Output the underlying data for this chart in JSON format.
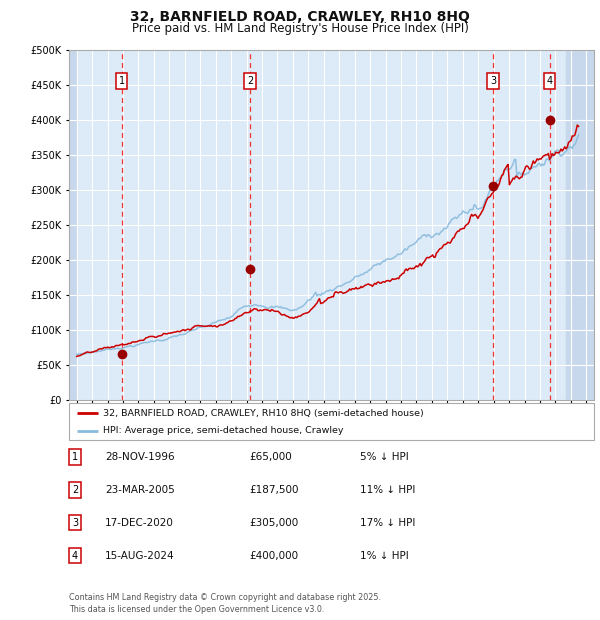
{
  "title": "32, BARNFIELD ROAD, CRAWLEY, RH10 8HQ",
  "subtitle": "Price paid vs. HM Land Registry's House Price Index (HPI)",
  "title_fontsize": 10,
  "subtitle_fontsize": 8.5,
  "xlim": [
    1993.5,
    2027.5
  ],
  "ylim": [
    0,
    500000
  ],
  "yticks": [
    0,
    50000,
    100000,
    150000,
    200000,
    250000,
    300000,
    350000,
    400000,
    450000,
    500000
  ],
  "ytick_labels": [
    "£0",
    "£50K",
    "£100K",
    "£150K",
    "£200K",
    "£250K",
    "£300K",
    "£350K",
    "£400K",
    "£450K",
    "£500K"
  ],
  "background_color": "#ddeaf7",
  "hatch_color": "#c8d8ec",
  "grid_color": "#ffffff",
  "red_line_color": "#cc0000",
  "blue_line_color": "#88bbdd",
  "vline_color": "#ee3333",
  "marker_color": "#990000",
  "sale_dates": [
    1996.91,
    2005.22,
    2020.96,
    2024.62
  ],
  "sale_prices": [
    65000,
    187500,
    305000,
    400000
  ],
  "sale_labels": [
    "1",
    "2",
    "3",
    "4"
  ],
  "legend_red_label": "32, BARNFIELD ROAD, CRAWLEY, RH10 8HQ (semi-detached house)",
  "legend_blue_label": "HPI: Average price, semi-detached house, Crawley",
  "table_rows": [
    {
      "num": "1",
      "date": "28-NOV-1996",
      "price": "£65,000",
      "pct": "5% ↓ HPI"
    },
    {
      "num": "2",
      "date": "23-MAR-2005",
      "price": "£187,500",
      "pct": "11% ↓ HPI"
    },
    {
      "num": "3",
      "date": "17-DEC-2020",
      "price": "£305,000",
      "pct": "17% ↓ HPI"
    },
    {
      "num": "4",
      "date": "15-AUG-2024",
      "price": "£400,000",
      "pct": "1% ↓ HPI"
    }
  ],
  "footer": "Contains HM Land Registry data © Crown copyright and database right 2025.\nThis data is licensed under the Open Government Licence v3.0."
}
